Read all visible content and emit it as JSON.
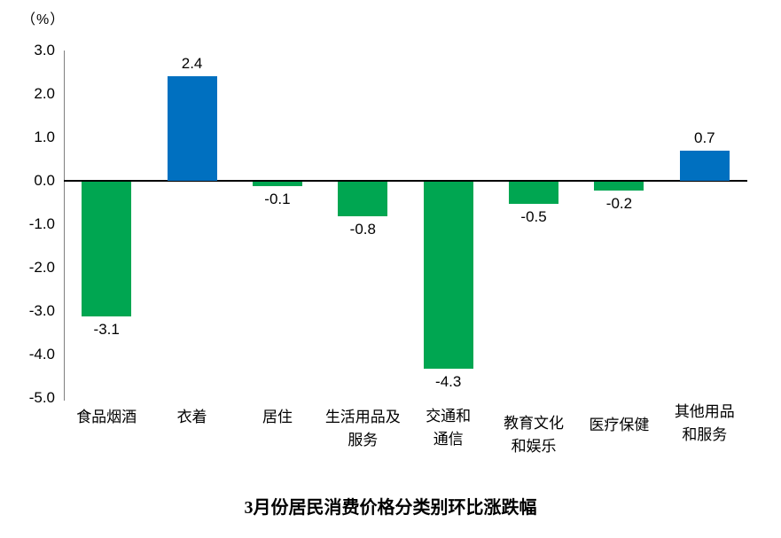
{
  "chart_data": {
    "type": "bar",
    "title": "3月份居民消费价格分类别环比涨跌幅",
    "unit_label": "（%）",
    "categories": [
      "食品烟酒",
      "衣着",
      "居住",
      "生活用品及\n服务",
      "交通和\n通信",
      "教育文化\n和娱乐",
      "医疗保健",
      "其他用品\n和服务"
    ],
    "values": [
      -3.1,
      2.4,
      -0.1,
      -0.8,
      -4.3,
      -0.5,
      -0.2,
      0.7
    ],
    "data_labels": [
      "-3.1",
      "2.4",
      "-0.1",
      "-0.8",
      "-4.3",
      "-0.5",
      "-0.2",
      "0.7"
    ],
    "xlabel": "",
    "ylabel": "（%）",
    "ylim": [
      -5.0,
      3.0
    ],
    "ytick_labels": [
      "3.0",
      "2.0",
      "1.0",
      "0.0",
      "-1.0",
      "-2.0",
      "-3.0",
      "-4.0",
      "-5.0"
    ],
    "ytick_values": [
      3,
      2,
      1,
      0,
      -1,
      -2,
      -3,
      -4,
      -5
    ],
    "grid": false,
    "legend_position": "none",
    "colors": {
      "positive_bar": "#0070C0",
      "negative_bar": "#00A651",
      "axis_line": "#808080",
      "zero_line": "#000000",
      "text": "#000000"
    }
  }
}
